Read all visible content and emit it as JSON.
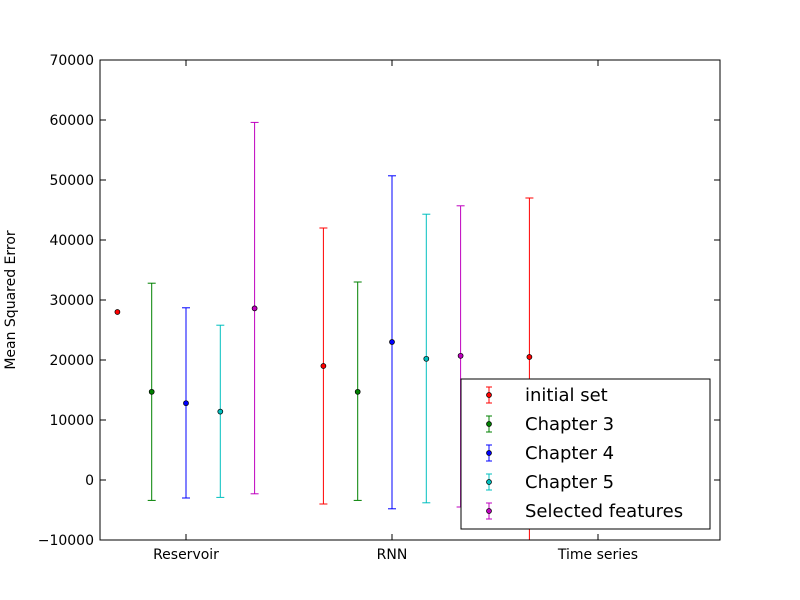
{
  "chart_data": {
    "type": "scatter",
    "error_bars": true,
    "title": "",
    "xlabel": "",
    "ylabel": "Mean Squared Error",
    "categories": [
      "Reservoir",
      "RNN",
      "Time series"
    ],
    "ylim": [
      -10000,
      70000
    ],
    "yticks": [
      -10000,
      0,
      10000,
      20000,
      30000,
      40000,
      50000,
      60000,
      70000
    ],
    "ytick_labels": [
      "−10000",
      "0",
      "10000",
      "20000",
      "30000",
      "40000",
      "50000",
      "60000",
      "70000"
    ],
    "grid": false,
    "legend": {
      "placement": "lower-right"
    },
    "series": [
      {
        "name": "initial set",
        "color": "#ff0000",
        "points": [
          {
            "category": "Reservoir",
            "offset": -0.4,
            "y": 28000,
            "low": null,
            "high": null
          },
          {
            "category": "RNN",
            "offset": -0.4,
            "y": 19000,
            "low": -4000,
            "high": 42000
          },
          {
            "category": "Time series",
            "offset": -0.4,
            "y": 20500,
            "low": null,
            "high": 47000
          }
        ]
      },
      {
        "name": "Chapter 3",
        "color": "#008000",
        "points": [
          {
            "category": "Reservoir",
            "offset": -0.2,
            "y": 14700,
            "low": -3400,
            "high": 32800
          },
          {
            "category": "RNN",
            "offset": -0.2,
            "y": 14700,
            "low": -3400,
            "high": 33000
          }
        ]
      },
      {
        "name": "Chapter 4",
        "color": "#0000ff",
        "points": [
          {
            "category": "Reservoir",
            "offset": 0.0,
            "y": 12800,
            "low": -3000,
            "high": 28700
          },
          {
            "category": "RNN",
            "offset": 0.0,
            "y": 23000,
            "low": -4800,
            "high": 50700
          }
        ]
      },
      {
        "name": "Chapter 5",
        "color": "#00bfbf",
        "points": [
          {
            "category": "Reservoir",
            "offset": 0.2,
            "y": 11400,
            "low": -2900,
            "high": 25800
          },
          {
            "category": "RNN",
            "offset": 0.2,
            "y": 20200,
            "low": -3800,
            "high": 44300
          }
        ]
      },
      {
        "name": "Selected features",
        "color": "#bf00bf",
        "points": [
          {
            "category": "Reservoir",
            "offset": 0.4,
            "y": 28600,
            "low": -2300,
            "high": 59600
          },
          {
            "category": "RNN",
            "offset": 0.4,
            "y": 20700,
            "low": -4500,
            "high": 45700
          }
        ]
      }
    ]
  }
}
